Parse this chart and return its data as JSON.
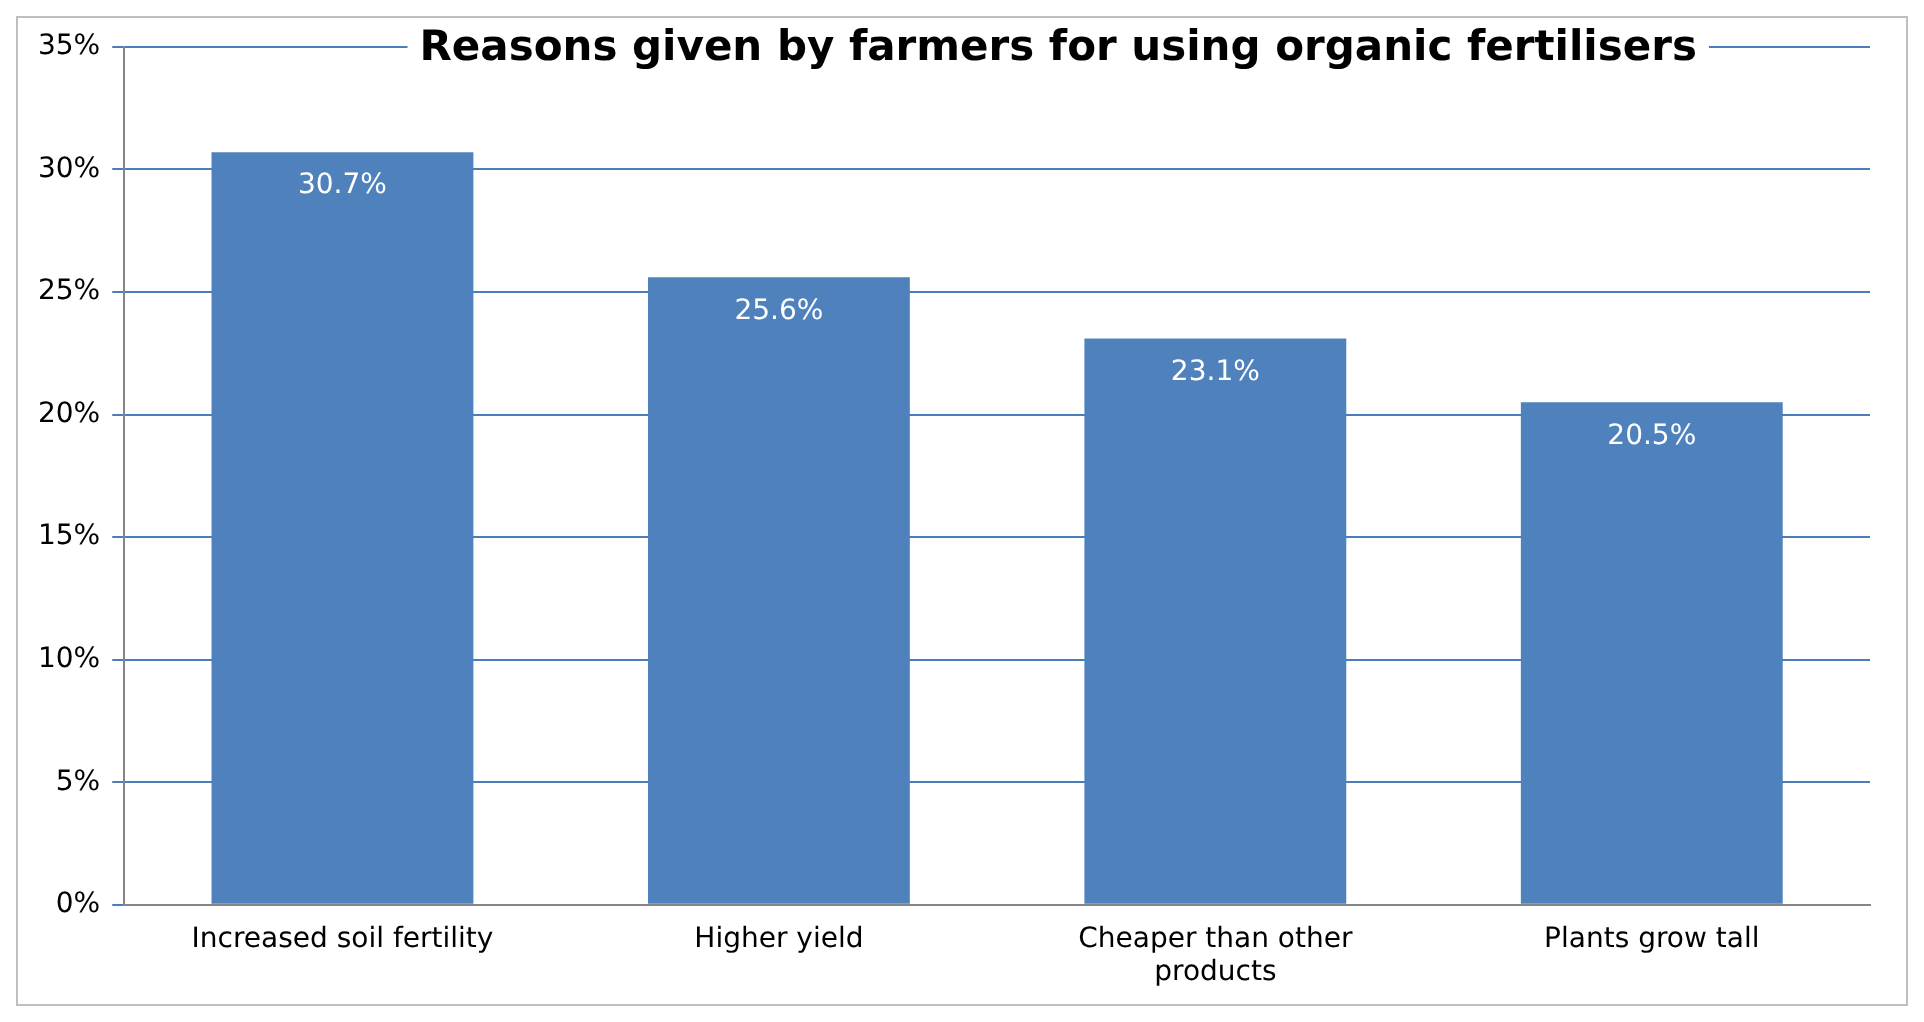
{
  "chart_data": {
    "type": "bar",
    "title": "Reasons given by farmers for using organic fertilisers",
    "categories": [
      "Increased soil fertility",
      "Higher yield",
      "Cheaper than other products",
      "Plants grow tall"
    ],
    "values": [
      30.7,
      25.6,
      23.1,
      20.5
    ],
    "color": "#4f81bd",
    "value_labels": [
      "30.7%",
      "25.6%",
      "23.1%",
      "20.5%"
    ],
    "ylim": [
      0,
      35
    ],
    "yticks": [
      {
        "value": 0,
        "label": "0%"
      },
      {
        "value": 5,
        "label": "5%"
      },
      {
        "value": 10,
        "label": "10%"
      },
      {
        "value": 15,
        "label": "15%"
      },
      {
        "value": 20,
        "label": "20%"
      },
      {
        "value": 25,
        "label": "25%"
      },
      {
        "value": 30,
        "label": "30%"
      },
      {
        "value": 35,
        "label": "35%"
      }
    ],
    "grid": "y"
  }
}
